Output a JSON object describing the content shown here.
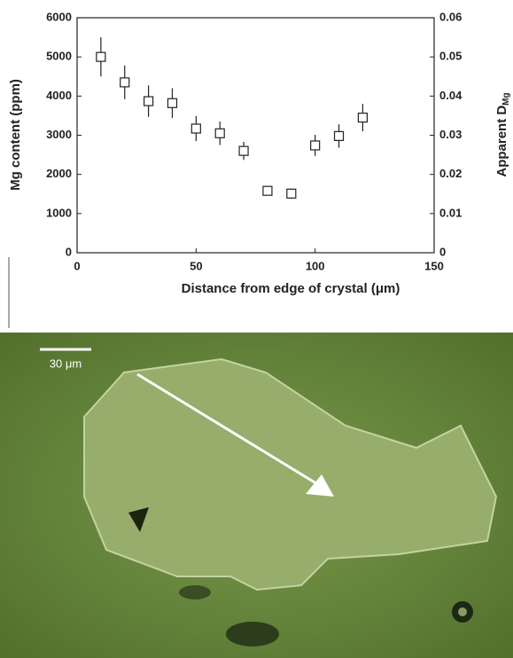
{
  "chart_data": {
    "type": "scatter",
    "xlabel": "Distance from edge of crystal (μm)",
    "ylabel": "Mg content (ppm)",
    "y2label": "Apparent D",
    "y2label_subscript": "Mg",
    "x": [
      10,
      20,
      30,
      40,
      50,
      60,
      70,
      80,
      90,
      100,
      110,
      120
    ],
    "series": [
      {
        "color": "#222222",
        "values": [
          5000,
          4350,
          3870,
          3820,
          3170,
          3050,
          2600,
          1580,
          1510,
          2740,
          2980,
          3450
        ],
        "error": [
          500,
          430,
          400,
          380,
          320,
          300,
          230,
          120,
          130,
          270,
          300,
          350
        ]
      }
    ],
    "xlim": [
      0,
      150
    ],
    "xticks": [
      0,
      50,
      100,
      150
    ],
    "ylim": [
      0,
      6000
    ],
    "yticks": [
      0,
      1000,
      2000,
      3000,
      4000,
      5000,
      6000
    ],
    "y2lim": [
      0,
      0.06
    ],
    "y2ticks": [
      0,
      0.01,
      0.02,
      0.03,
      0.04,
      0.05,
      0.06
    ],
    "grid": false
  },
  "micrograph": {
    "scale_bar_label": "30 μm"
  }
}
